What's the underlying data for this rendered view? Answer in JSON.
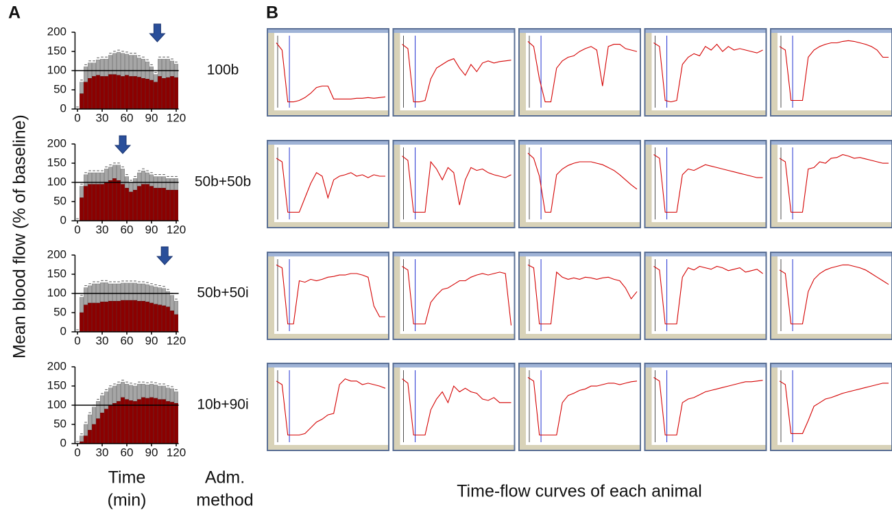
{
  "labels": {
    "panel_a": "A",
    "panel_b": "B",
    "y_axis": "Mean blood flow (% of baseline)",
    "x_axis": [
      "Time",
      "(min)"
    ],
    "method_axis": [
      "Adm.",
      "method"
    ]
  },
  "chart_data": [
    {
      "type": "bar",
      "label": "100b",
      "color": "#8b0000",
      "error_color": "#a6a6a6",
      "x": [
        0,
        5,
        10,
        15,
        20,
        25,
        30,
        35,
        40,
        45,
        50,
        55,
        60,
        65,
        70,
        75,
        80,
        85,
        90,
        95,
        100,
        105,
        110,
        115,
        120
      ],
      "values": [
        0,
        40,
        70,
        80,
        85,
        88,
        85,
        85,
        90,
        90,
        88,
        85,
        88,
        85,
        85,
        83,
        80,
        78,
        75,
        70,
        85,
        80,
        82,
        85,
        82
      ],
      "errors": [
        0,
        30,
        40,
        40,
        35,
        40,
        45,
        45,
        50,
        55,
        60,
        60,
        55,
        55,
        55,
        50,
        50,
        45,
        35,
        20,
        45,
        50,
        48,
        40,
        35
      ],
      "xlim": [
        -3,
        123
      ],
      "xticks": [
        0,
        30,
        60,
        90,
        120
      ],
      "ylim": [
        0,
        200
      ],
      "yticks": [
        0,
        50,
        100,
        150,
        200
      ],
      "reference_line": 100,
      "arrow_x": 97
    },
    {
      "type": "bar",
      "label": "50b+50b",
      "color": "#8b0000",
      "error_color": "#a6a6a6",
      "x": [
        0,
        5,
        10,
        15,
        20,
        25,
        30,
        35,
        40,
        45,
        50,
        55,
        60,
        65,
        70,
        75,
        80,
        85,
        90,
        95,
        100,
        105,
        110,
        115,
        120
      ],
      "values": [
        0,
        60,
        90,
        95,
        95,
        95,
        95,
        100,
        105,
        110,
        105,
        95,
        85,
        75,
        80,
        90,
        95,
        95,
        90,
        85,
        85,
        85,
        80,
        80,
        80
      ],
      "errors": [
        0,
        30,
        30,
        30,
        30,
        30,
        30,
        35,
        35,
        35,
        40,
        40,
        30,
        25,
        30,
        35,
        35,
        30,
        30,
        30,
        30,
        30,
        30,
        30,
        30
      ],
      "xlim": [
        -3,
        123
      ],
      "xticks": [
        0,
        30,
        60,
        90,
        120
      ],
      "ylim": [
        0,
        200
      ],
      "yticks": [
        0,
        50,
        100,
        150,
        200
      ],
      "reference_line": 100,
      "arrow_x": 55
    },
    {
      "type": "bar",
      "label": "50b+50i",
      "color": "#8b0000",
      "error_color": "#a6a6a6",
      "x": [
        0,
        5,
        10,
        15,
        20,
        25,
        30,
        35,
        40,
        45,
        50,
        55,
        60,
        65,
        70,
        75,
        80,
        85,
        90,
        95,
        100,
        105,
        110,
        115,
        120
      ],
      "values": [
        0,
        50,
        70,
        75,
        75,
        75,
        78,
        78,
        80,
        80,
        80,
        82,
        82,
        82,
        82,
        80,
        80,
        78,
        75,
        72,
        70,
        68,
        65,
        55,
        45
      ],
      "errors": [
        0,
        40,
        45,
        45,
        50,
        50,
        50,
        50,
        45,
        45,
        45,
        45,
        45,
        45,
        45,
        45,
        45,
        45,
        45,
        45,
        45,
        45,
        40,
        40,
        35
      ],
      "xlim": [
        -3,
        123
      ],
      "xticks": [
        0,
        30,
        60,
        90,
        120
      ],
      "ylim": [
        0,
        200
      ],
      "yticks": [
        0,
        50,
        100,
        150,
        200
      ],
      "reference_line": 100,
      "arrow_x": 106
    },
    {
      "type": "bar",
      "label": "10b+90i",
      "color": "#8b0000",
      "error_color": "#a6a6a6",
      "x": [
        0,
        5,
        10,
        15,
        20,
        25,
        30,
        35,
        40,
        45,
        50,
        55,
        60,
        65,
        70,
        75,
        80,
        85,
        90,
        95,
        100,
        105,
        110,
        115,
        120
      ],
      "values": [
        0,
        5,
        20,
        35,
        50,
        65,
        80,
        90,
        100,
        105,
        110,
        120,
        115,
        112,
        110,
        115,
        120,
        118,
        120,
        118,
        115,
        115,
        110,
        108,
        105
      ],
      "errors": [
        0,
        15,
        30,
        40,
        45,
        45,
        45,
        45,
        45,
        45,
        45,
        40,
        40,
        40,
        40,
        40,
        35,
        35,
        35,
        35,
        35,
        35,
        35,
        35,
        30
      ],
      "xlim": [
        -3,
        123
      ],
      "xticks": [
        0,
        30,
        60,
        90,
        120
      ],
      "ylim": [
        0,
        200
      ],
      "yticks": [
        0,
        50,
        100,
        150,
        200
      ],
      "reference_line": 100
    },
    {
      "type": "line",
      "title": "Time-flow curves of each animal",
      "color": "#d40000",
      "ylim": [
        0,
        100
      ],
      "rows": [
        [
          [
            90,
            80,
            8,
            8,
            10,
            14,
            20,
            28,
            30,
            30,
            12,
            12,
            12,
            12,
            13,
            13,
            14,
            13,
            14,
            15
          ],
          [
            88,
            82,
            8,
            8,
            10,
            40,
            55,
            60,
            65,
            68,
            55,
            45,
            60,
            50,
            62,
            65,
            62,
            64,
            65,
            66
          ],
          [
            92,
            85,
            40,
            8,
            8,
            55,
            65,
            70,
            72,
            78,
            82,
            85,
            80,
            30,
            85,
            88,
            88,
            82,
            80,
            78
          ],
          [
            90,
            85,
            10,
            8,
            10,
            60,
            70,
            75,
            72,
            85,
            80,
            88,
            78,
            85,
            80,
            82,
            80,
            78,
            76,
            80
          ],
          [
            85,
            80,
            10,
            10,
            10,
            70,
            80,
            85,
            88,
            90,
            90,
            92,
            93,
            92,
            90,
            88,
            85,
            80,
            70,
            70
          ]
        ],
        [
          [
            85,
            80,
            10,
            10,
            10,
            30,
            50,
            65,
            60,
            30,
            55,
            60,
            62,
            65,
            60,
            62,
            58,
            62,
            60,
            60
          ],
          [
            88,
            82,
            10,
            10,
            10,
            80,
            70,
            55,
            72,
            65,
            20,
            55,
            72,
            68,
            70,
            65,
            62,
            60,
            58,
            62
          ],
          [
            92,
            85,
            60,
            10,
            10,
            62,
            70,
            75,
            78,
            80,
            80,
            80,
            78,
            76,
            72,
            68,
            62,
            55,
            48,
            42
          ],
          [
            90,
            85,
            10,
            10,
            10,
            62,
            70,
            68,
            72,
            76,
            74,
            72,
            70,
            68,
            66,
            64,
            62,
            60,
            58,
            58
          ],
          [
            85,
            80,
            10,
            10,
            10,
            70,
            72,
            80,
            78,
            85,
            86,
            90,
            88,
            85,
            86,
            84,
            82,
            80,
            78,
            78
          ]
        ],
        [
          [
            92,
            88,
            10,
            10,
            70,
            68,
            72,
            70,
            72,
            75,
            76,
            78,
            78,
            80,
            80,
            78,
            75,
            35,
            20,
            20
          ],
          [
            90,
            85,
            10,
            10,
            10,
            40,
            50,
            58,
            60,
            65,
            70,
            70,
            75,
            78,
            80,
            78,
            80,
            82,
            80,
            8
          ],
          [
            92,
            88,
            10,
            10,
            10,
            82,
            75,
            72,
            74,
            72,
            75,
            74,
            72,
            74,
            75,
            72,
            70,
            60,
            45,
            55
          ],
          [
            90,
            85,
            10,
            10,
            10,
            75,
            88,
            85,
            90,
            88,
            86,
            90,
            88,
            84,
            86,
            88,
            82,
            84,
            86,
            80
          ],
          [
            85,
            80,
            10,
            10,
            10,
            55,
            72,
            80,
            85,
            88,
            90,
            92,
            92,
            90,
            88,
            85,
            80,
            75,
            70,
            65
          ]
        ],
        [
          [
            85,
            80,
            10,
            10,
            10,
            12,
            20,
            28,
            32,
            38,
            40,
            80,
            88,
            85,
            85,
            80,
            82,
            80,
            78,
            75
          ],
          [
            88,
            82,
            10,
            10,
            10,
            45,
            60,
            70,
            55,
            78,
            70,
            75,
            70,
            68,
            60,
            58,
            62,
            55,
            55,
            55
          ],
          [
            90,
            85,
            10,
            10,
            10,
            10,
            55,
            65,
            68,
            72,
            74,
            78,
            78,
            80,
            82,
            82,
            80,
            82,
            84,
            85
          ],
          [
            90,
            85,
            10,
            10,
            10,
            55,
            60,
            62,
            66,
            70,
            72,
            74,
            76,
            78,
            80,
            82,
            84,
            84,
            85,
            86
          ],
          [
            85,
            80,
            12,
            12,
            12,
            30,
            50,
            55,
            60,
            62,
            65,
            68,
            70,
            72,
            74,
            76,
            78,
            80,
            82,
            82
          ]
        ]
      ]
    }
  ]
}
